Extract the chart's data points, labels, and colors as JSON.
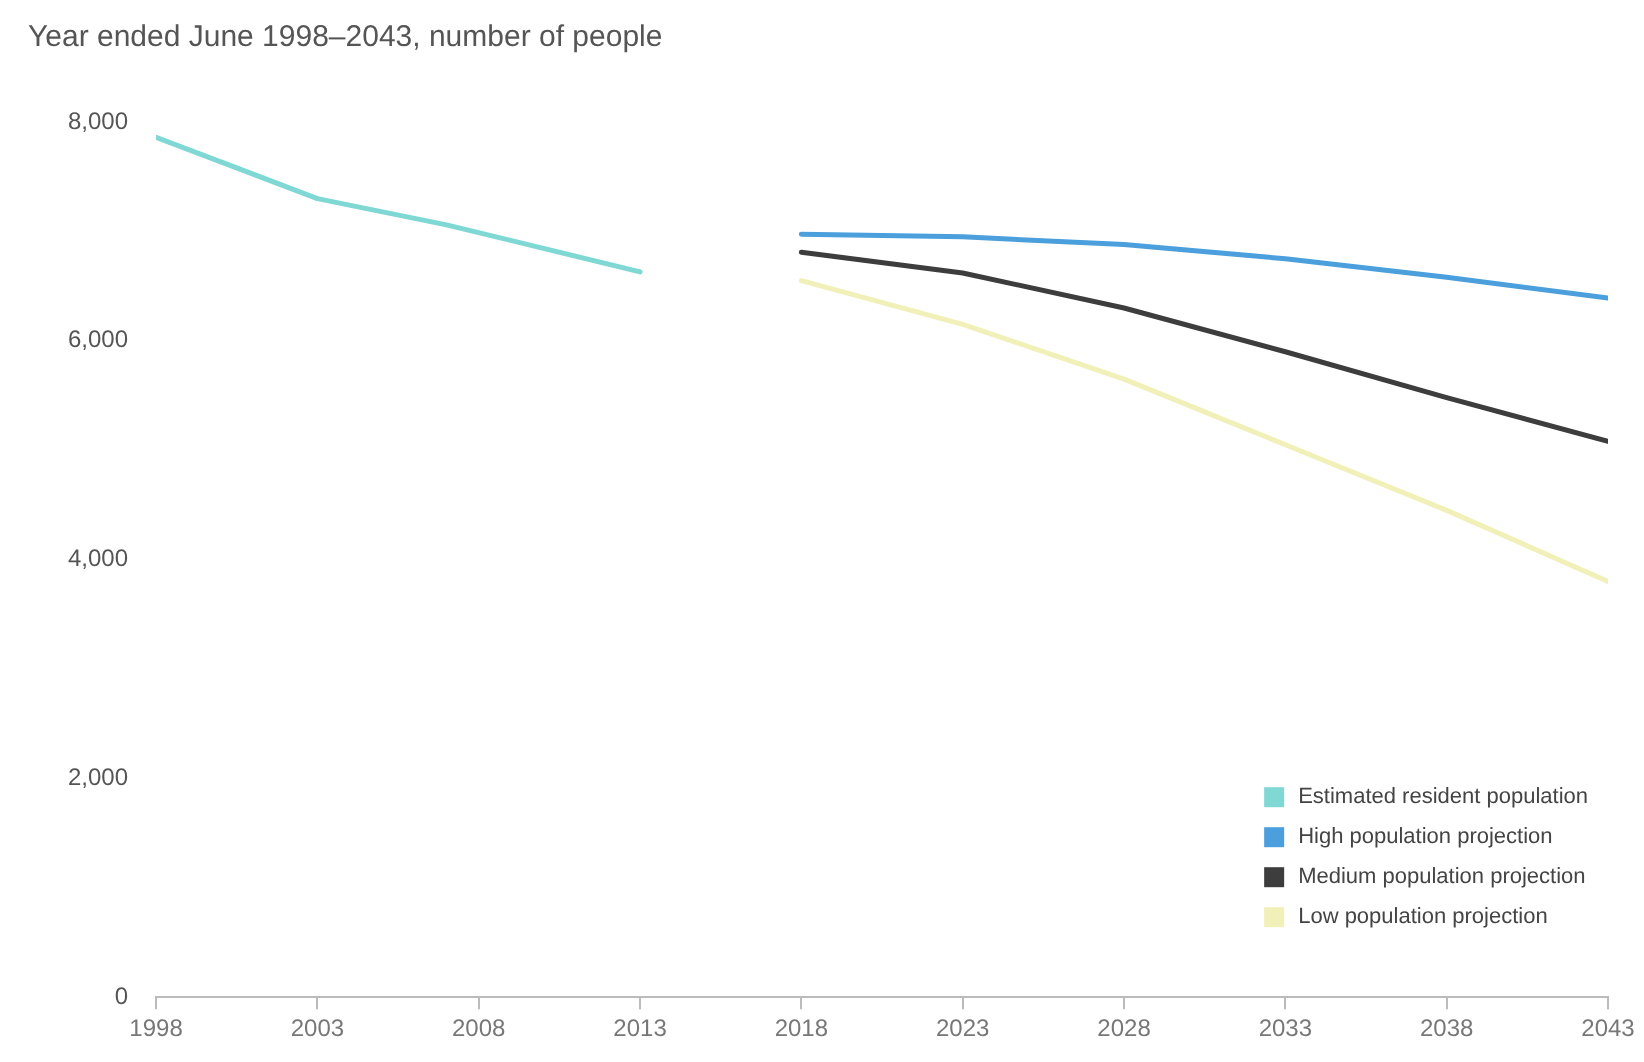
{
  "chart_data": {
    "type": "line",
    "title": "Year ended June 1998–2043, number of people",
    "series": [
      {
        "name": "Estimated resident population",
        "color": "#7fd8d4",
        "x": [
          1998,
          2003,
          2007,
          2013
        ],
        "values": [
          7860,
          7300,
          7060,
          6630
        ]
      },
      {
        "name": "High population projection",
        "color": "#4a9fdc",
        "x": [
          2018,
          2023,
          2028,
          2033,
          2038,
          2043
        ],
        "values": [
          6975,
          6950,
          6880,
          6750,
          6580,
          6390
        ]
      },
      {
        "name": "Medium population projection",
        "color": "#3d3d3d",
        "x": [
          2018,
          2023,
          2028,
          2033,
          2038,
          2043
        ],
        "values": [
          6810,
          6620,
          6300,
          5900,
          5480,
          5080
        ]
      },
      {
        "name": "Low population projection",
        "color": "#f0f0b8",
        "x": [
          2018,
          2023,
          2028,
          2033,
          2038,
          2043
        ],
        "values": [
          6550,
          6150,
          5650,
          5050,
          4450,
          3800
        ]
      }
    ],
    "xlim": [
      1998,
      2043
    ],
    "xticks": [
      1998,
      2003,
      2008,
      2013,
      2018,
      2023,
      2028,
      2033,
      2038,
      2043
    ],
    "ylim": [
      0,
      8000
    ],
    "yticks": [
      0,
      {
        "value": 2000,
        "label": "2,000"
      },
      {
        "value": 4000,
        "label": "4,000"
      },
      {
        "value": 6000,
        "label": "6,000"
      },
      {
        "value": 8000,
        "label": "8,000"
      }
    ],
    "grid": false,
    "legend": "bottom right",
    "marker": "none",
    "line_style": "solid"
  }
}
